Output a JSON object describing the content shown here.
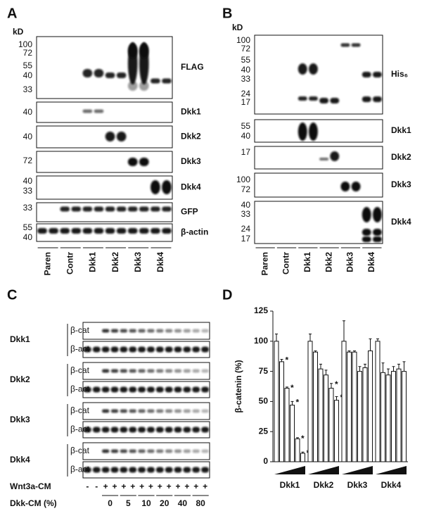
{
  "panel_a": {
    "label": "A",
    "unit": "kD",
    "blots": [
      {
        "name": "FLAG",
        "markers": [
          100,
          72,
          55,
          40,
          33
        ]
      },
      {
        "name": "Dkk1",
        "markers": [
          40
        ]
      },
      {
        "name": "Dkk2",
        "markers": [
          40
        ]
      },
      {
        "name": "Dkk3",
        "markers": [
          72
        ]
      },
      {
        "name": "Dkk4",
        "markers": [
          40,
          33
        ]
      },
      {
        "name": "GFP",
        "markers": [
          33
        ]
      },
      {
        "name": "β-actin",
        "markers": [
          55,
          40
        ]
      }
    ],
    "lanes": [
      "Paren",
      "Contr",
      "Dkk1",
      "Dkk2",
      "Dkk3",
      "Dkk4"
    ]
  },
  "panel_b": {
    "label": "B",
    "unit": "kD",
    "blots": [
      {
        "name": "His₆",
        "markers": [
          100,
          72,
          55,
          40,
          33,
          24,
          17
        ]
      },
      {
        "name": "Dkk1",
        "markers": [
          55,
          40
        ]
      },
      {
        "name": "Dkk2",
        "markers": [
          17
        ]
      },
      {
        "name": "Dkk3",
        "markers": [
          100,
          72
        ]
      },
      {
        "name": "Dkk4",
        "markers": [
          40,
          33,
          24,
          17
        ]
      }
    ],
    "lanes": [
      "Paren",
      "Contr",
      "Dkk1",
      "Dkk2",
      "Dkk3",
      "Dkk4"
    ]
  },
  "panel_c": {
    "label": "C",
    "rows": [
      {
        "name": "Dkk1",
        "blots": [
          "β-cat",
          "β-act"
        ]
      },
      {
        "name": "Dkk2",
        "blots": [
          "β-cat",
          "β-act"
        ]
      },
      {
        "name": "Dkk3",
        "blots": [
          "β-cat",
          "β-act"
        ]
      },
      {
        "name": "Dkk4",
        "blots": [
          "β-cat",
          "β-act"
        ]
      }
    ],
    "wnt_label": "Wnt3a-CM",
    "wnt_signs": [
      "-",
      "-",
      "+",
      "+",
      "+",
      "+",
      "+",
      "+",
      "+",
      "+",
      "+",
      "+",
      "+",
      "+"
    ],
    "dose_label": "Dkk-CM (%)",
    "doses": [
      0,
      5,
      10,
      20,
      40,
      80
    ]
  },
  "chart_data": {
    "type": "bar",
    "label": "D",
    "ylabel": "β-catenin (%)",
    "ylim": [
      0,
      125
    ],
    "yticks": [
      0,
      25,
      50,
      75,
      100,
      125
    ],
    "color": "#ffffff",
    "asterisk": "*",
    "groups": [
      {
        "name": "Dkk1",
        "values": [
          100,
          83,
          61,
          47,
          19,
          7
        ],
        "errors": [
          6,
          2,
          1,
          3,
          1,
          1
        ],
        "significant": [
          false,
          true,
          true,
          true,
          true,
          true
        ]
      },
      {
        "name": "Dkk2",
        "values": [
          100,
          91,
          77,
          72,
          61,
          51
        ],
        "errors": [
          6,
          1,
          4,
          4,
          4,
          3
        ],
        "significant": [
          false,
          false,
          false,
          false,
          true,
          true
        ]
      },
      {
        "name": "Dkk3",
        "values": [
          100,
          91,
          91,
          75,
          78,
          92
        ],
        "errors": [
          17,
          1,
          1,
          4,
          3,
          10
        ],
        "significant": [
          false,
          false,
          false,
          false,
          false,
          false
        ]
      },
      {
        "name": "Dkk4",
        "values": [
          100,
          74,
          72,
          75,
          77,
          75
        ],
        "errors": [
          2,
          8,
          5,
          4,
          4,
          8
        ],
        "significant": [
          false,
          false,
          false,
          false,
          false,
          false
        ]
      }
    ]
  }
}
